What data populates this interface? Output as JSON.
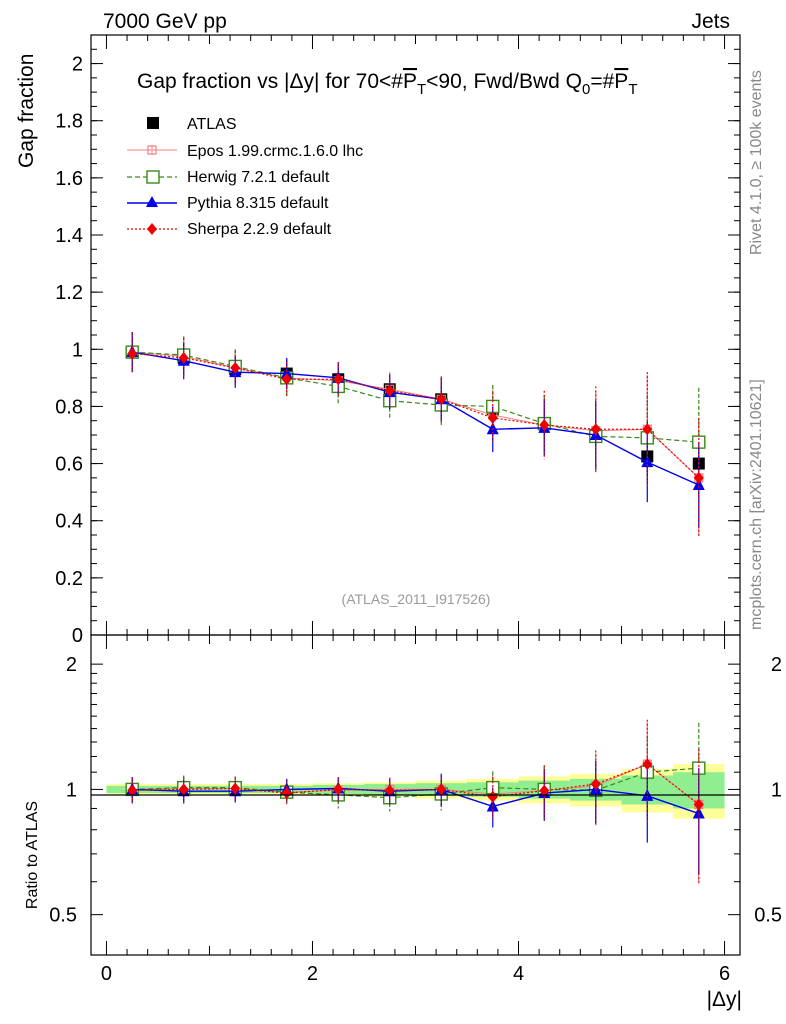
{
  "header": {
    "left": "7000 GeV pp",
    "right": "Jets"
  },
  "side_labels": {
    "rivet": "Rivet 4.1.0, ≥ 100k events",
    "mcplots": "mcplots.cern.ch [arXiv:2401.10621]"
  },
  "chart_data": [
    {
      "type": "scatter",
      "title": "Gap fraction vs |Δy| for 70<#P̅T<90, Fwd/Bwd Q0=#P̅T",
      "title_parts": {
        "a": "Gap fraction vs |Δy| for 70<#",
        "b": "P",
        "c": "T",
        "d": "<90, Fwd/Bwd Q",
        "e": "0",
        "f": "=#",
        "g": "P",
        "h": "T"
      },
      "ylabel": "Gap fraction",
      "xlabel": "|Δy|",
      "xlim": [
        -0.15,
        6.15
      ],
      "ylim": [
        0,
        2.1
      ],
      "yticks": [
        0,
        0.2,
        0.4,
        0.6,
        0.8,
        1,
        1.2,
        1.4,
        1.6,
        1.8,
        2
      ],
      "ytick_labels": [
        "0",
        "0.2",
        "0.4",
        "0.6",
        "0.8",
        "1",
        "1.2",
        "1.4",
        "1.6",
        "1.8",
        "2"
      ],
      "watermark": "(ATLAS_2011_I917526)",
      "x": [
        0.25,
        0.75,
        1.25,
        1.75,
        2.25,
        2.75,
        3.25,
        3.75,
        4.25,
        4.75,
        5.25,
        5.75
      ],
      "series": [
        {
          "name": "ATLAS",
          "style": "data",
          "color": "#000000",
          "values": [
            0.99,
            0.97,
            0.93,
            0.915,
            0.895,
            0.86,
            0.825,
            0.79,
            0.74,
            0.7,
            0.625,
            0.6
          ],
          "errors": [
            0.02,
            0.02,
            0.02,
            0.02,
            0.025,
            0.025,
            0.03,
            0.03,
            0.04,
            0.05,
            0.06,
            0.07
          ]
        },
        {
          "name": "Epos 1.99.crmc.1.6.0 lhc",
          "style": "epos",
          "color": "#f08080",
          "values": [
            0.99,
            0.975,
            0.935,
            0.9,
            0.89,
            0.86,
            0.825,
            0.77,
            0.735,
            0.715,
            0.72,
            0.55
          ],
          "errors": [
            0.07,
            0.07,
            0.06,
            0.06,
            0.06,
            0.06,
            0.08,
            0.09,
            0.1,
            0.14,
            0.19,
            0.2
          ]
        },
        {
          "name": "Herwig 7.2.1 default",
          "style": "herwig",
          "color": "#3a8a1a",
          "values": [
            0.99,
            0.98,
            0.94,
            0.9,
            0.87,
            0.82,
            0.805,
            0.8,
            0.74,
            0.695,
            0.69,
            0.675
          ],
          "errors": [
            0.07,
            0.065,
            0.06,
            0.06,
            0.06,
            0.06,
            0.07,
            0.075,
            0.1,
            0.12,
            0.15,
            0.19
          ]
        },
        {
          "name": "Pythia 8.315 default",
          "style": "pythia",
          "color": "#0000ee",
          "values": [
            0.99,
            0.96,
            0.92,
            0.915,
            0.9,
            0.85,
            0.825,
            0.72,
            0.725,
            0.7,
            0.605,
            0.525
          ],
          "errors": [
            0.07,
            0.065,
            0.055,
            0.055,
            0.055,
            0.06,
            0.075,
            0.08,
            0.1,
            0.12,
            0.14,
            0.15
          ]
        },
        {
          "name": "Sherpa 2.2.9 default",
          "style": "sherpa",
          "color": "#ee0000",
          "values": [
            0.985,
            0.97,
            0.935,
            0.895,
            0.895,
            0.855,
            0.825,
            0.76,
            0.735,
            0.72,
            0.72,
            0.55
          ],
          "errors": [
            0.07,
            0.07,
            0.06,
            0.06,
            0.06,
            0.06,
            0.08,
            0.09,
            0.12,
            0.15,
            0.2,
            0.21
          ]
        }
      ]
    },
    {
      "type": "scatter",
      "ylabel": "Ratio to ATLAS",
      "xlabel": "|Δy|",
      "xlim": [
        -0.15,
        6.15
      ],
      "ylim": [
        0.4,
        2.35
      ],
      "yscale": "log",
      "yticks": [
        0.5,
        1,
        2
      ],
      "ytick_labels": [
        "0.5",
        "1",
        "2"
      ],
      "xticks": [
        0,
        2,
        4,
        6
      ],
      "xtick_labels": [
        "0",
        "2",
        "4",
        "6"
      ],
      "bands": {
        "stat": [
          0.02,
          0.02,
          0.02,
          0.02,
          0.025,
          0.03,
          0.035,
          0.04,
          0.05,
          0.06,
          0.08,
          0.1
        ],
        "total": [
          0.03,
          0.03,
          0.03,
          0.03,
          0.035,
          0.04,
          0.05,
          0.06,
          0.075,
          0.09,
          0.12,
          0.15
        ],
        "stat_color": "#90ee90",
        "total_color": "#ffff99"
      },
      "series": [
        {
          "name": "Epos 1.99.crmc.1.6.0 lhc",
          "style": "epos",
          "color": "#f08080",
          "values": [
            1.0,
            1.005,
            1.005,
            0.985,
            0.995,
            1.0,
            1.0,
            0.975,
            0.993,
            1.02,
            1.15,
            0.92
          ],
          "errors": [
            0.07,
            0.07,
            0.065,
            0.065,
            0.07,
            0.07,
            0.09,
            0.11,
            0.14,
            0.2,
            0.3,
            0.32
          ]
        },
        {
          "name": "Herwig 7.2.1 default",
          "style": "herwig",
          "color": "#3a8a1a",
          "values": [
            1.0,
            1.01,
            1.01,
            0.985,
            0.97,
            0.955,
            0.975,
            1.01,
            1.0,
            0.995,
            1.1,
            1.125
          ],
          "errors": [
            0.07,
            0.07,
            0.065,
            0.065,
            0.07,
            0.07,
            0.085,
            0.095,
            0.14,
            0.17,
            0.24,
            0.32
          ]
        },
        {
          "name": "Pythia 8.315 default",
          "style": "pythia",
          "color": "#0000ee",
          "values": [
            1.0,
            0.99,
            0.99,
            1.0,
            1.005,
            0.99,
            1.0,
            0.91,
            0.98,
            1.0,
            0.965,
            0.875
          ],
          "errors": [
            0.07,
            0.065,
            0.06,
            0.06,
            0.065,
            0.07,
            0.09,
            0.1,
            0.14,
            0.17,
            0.22,
            0.25
          ]
        },
        {
          "name": "Sherpa 2.2.9 default",
          "style": "sherpa",
          "color": "#ee0000",
          "values": [
            0.995,
            1.0,
            1.005,
            0.98,
            1.0,
            0.995,
            1.0,
            0.96,
            0.993,
            1.03,
            1.15,
            0.92
          ],
          "errors": [
            0.07,
            0.07,
            0.065,
            0.065,
            0.07,
            0.07,
            0.09,
            0.11,
            0.15,
            0.21,
            0.32,
            0.33
          ]
        }
      ]
    }
  ]
}
